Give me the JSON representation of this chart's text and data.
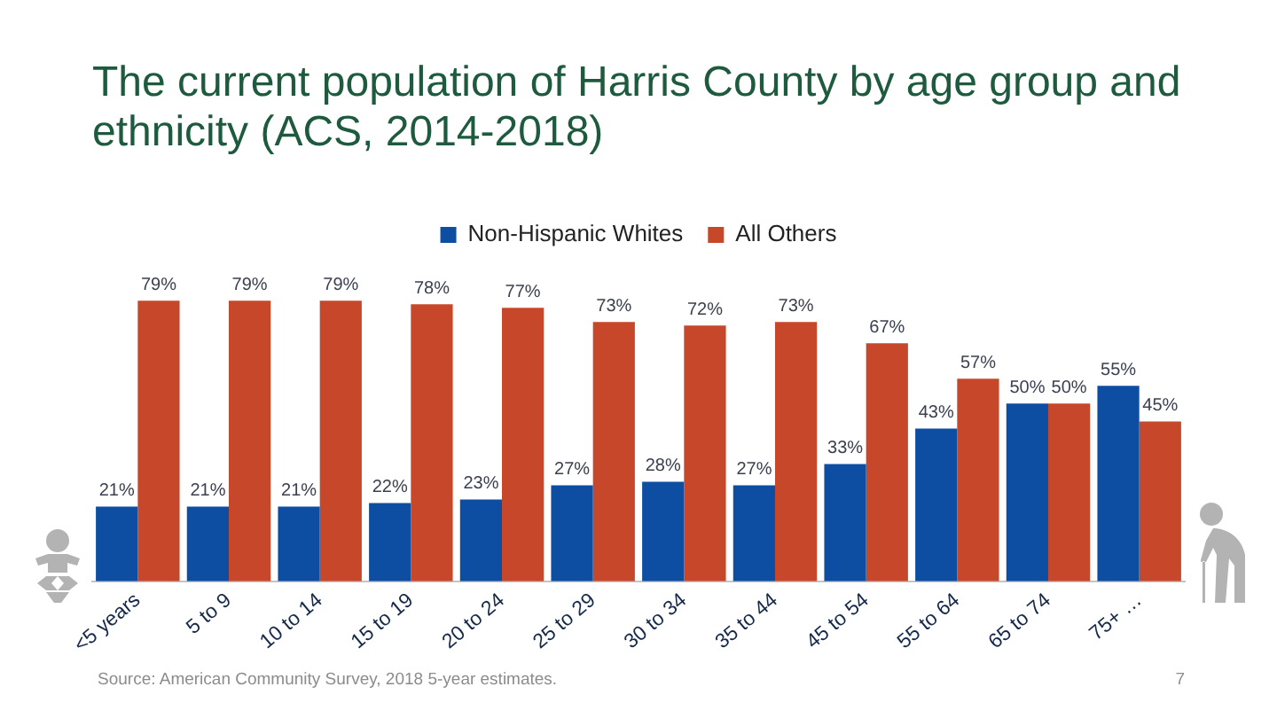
{
  "chart_data": {
    "type": "bar",
    "title": "The current population of Harris County by age group and ethnicity (ACS, 2014-2018)",
    "categories": [
      "<5 years",
      "5 to 9",
      "10 to 14",
      "15 to 19",
      "20 to 24",
      "25 to 29",
      "30 to 34",
      "35 to 44",
      "45 to 54",
      "55 to 64",
      "65 to 74",
      "75+ …"
    ],
    "series": [
      {
        "name": "Non-Hispanic Whites",
        "color": "#0d4ea3",
        "values": [
          21,
          21,
          21,
          22,
          23,
          27,
          28,
          27,
          33,
          43,
          50,
          55
        ],
        "value_labels": [
          "21%",
          "21%",
          "21%",
          "22%",
          "23%",
          "27%",
          "28%",
          "27%",
          "33%",
          "43%",
          "50%",
          "55%"
        ]
      },
      {
        "name": "All Others",
        "color": "#c7472b",
        "values": [
          79,
          79,
          79,
          78,
          77,
          73,
          72,
          73,
          67,
          57,
          50,
          45
        ],
        "value_labels": [
          "79%",
          "79%",
          "79%",
          "78%",
          "77%",
          "73%",
          "72%",
          "73%",
          "67%",
          "57%",
          "50%",
          "45%"
        ]
      }
    ],
    "legend": "top",
    "annotations": [
      "Source: American Community Survey, 2018 5-year estimates.",
      "7"
    ]
  }
}
